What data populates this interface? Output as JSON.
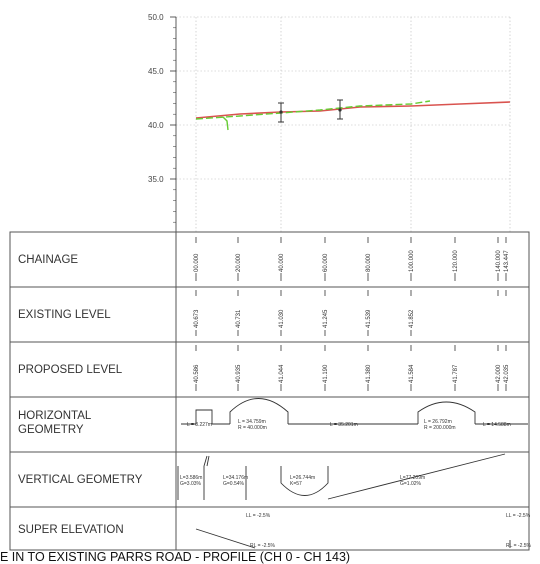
{
  "chart": {
    "y_ticks": [
      "50.0",
      "45.0",
      "40.0",
      "35.0"
    ]
  },
  "bands": {
    "chainage": {
      "label": "CHAINAGE",
      "values": [
        "00.000",
        "20.000",
        "40.000",
        "60.000",
        "80.000",
        "100.000",
        "120.000",
        "140.000",
        "143.447"
      ]
    },
    "existing": {
      "label": "EXISTING LEVEL",
      "values": [
        "40.673",
        "40.731",
        "41.030",
        "41.245",
        "41.539",
        "41.852"
      ]
    },
    "proposed": {
      "label": "PROPOSED LEVEL",
      "values": [
        "40.586",
        "40.935",
        "41.044",
        "41.190",
        "41.380",
        "41.584",
        "41.787",
        "42.000",
        "42.035"
      ]
    },
    "horizontal": {
      "label_line1": "HORIZONTAL",
      "label_line2": "GEOMETRY",
      "seg_a": "L = 8.227m",
      "curve1_l": "L = 34.759m",
      "curve1_r": "R = 40.000m",
      "straight": "L = 35.201m",
      "curve2_l": "L = 26.792m",
      "curve2_r": "R = 200.000m",
      "seg_end": "L = 14.588m"
    },
    "vertical": {
      "label": "VERTICAL GEOMETRY",
      "s1_l": "L=3.586m",
      "s1_g": "G=3.03%",
      "s2_l": "L=34.176m",
      "s2_g": "G=0.54%",
      "s3_l": "L=26.744m",
      "s3_k": "K=57",
      "s4_l": "L=77.209m",
      "s4_g": "G=1.02%"
    },
    "super": {
      "label": "SUPER ELEVATION",
      "ll_1": "LL = -2.5%",
      "ll_2": "LL = -2.5%",
      "rl_1": "RL = -2.5%",
      "rl_2": "RL = -2.5%"
    }
  },
  "caption": "E IN TO EXISTING PARRS ROAD - PROFILE (CH 0 - CH 143)"
}
